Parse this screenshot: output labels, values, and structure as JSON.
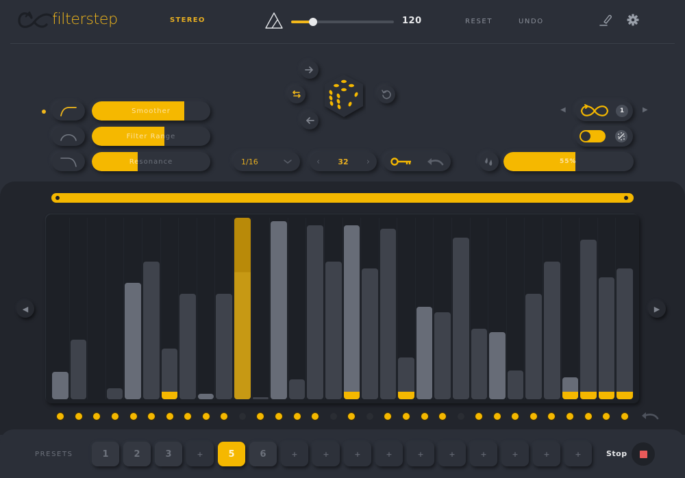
{
  "header": {
    "app_name": "filterstep",
    "mode_label": "STEREO",
    "tempo": {
      "value": "120",
      "slider_percent": 21
    },
    "reset_label": "RESET",
    "undo_label": "UNDO",
    "icons": {
      "logo": "infinity-loop-logo",
      "metronome": "metronome-icon",
      "edit": "pencil-icon",
      "settings": "gear-icon"
    }
  },
  "filter_panel": {
    "active_index": 0,
    "rows": [
      {
        "curve_icon": "lowpass-curve-icon",
        "label": "Smoother",
        "percent": 78
      },
      {
        "curve_icon": "bandpass-curve-icon",
        "label": "Filter Range",
        "percent": 61
      },
      {
        "curve_icon": "highpass-curve-icon",
        "label": "Resonance",
        "percent": 39
      }
    ]
  },
  "randomizer": {
    "icons": {
      "shift-right": "arrow-right-icon",
      "swap": "swap-arrows-icon",
      "shift-left": "arrow-left-icon",
      "dice": "dice-icon",
      "reset": "rotate-ccw-icon"
    }
  },
  "controls": {
    "division": {
      "value": "1/16",
      "icon": "chevron-down-icon"
    },
    "steps": {
      "value": "32",
      "prev": "‹",
      "next": "›"
    },
    "key_icon": "key-icon",
    "undo_icon": "undo-arrow-icon"
  },
  "right_panel": {
    "loop": {
      "prev": "◀",
      "next": "▶",
      "icon": "infinity-loop-icon",
      "count": "1"
    },
    "toggle": {
      "on": true,
      "icon": "random-dice-icon"
    },
    "mix": {
      "icon": "droplets-icon",
      "value": "55%",
      "percent": 55
    }
  },
  "sequencer": {
    "range": {
      "start": 0,
      "end": 100
    },
    "nav_prev": "◀",
    "nav_next": "▶",
    "steps": [
      {
        "h": 15,
        "tone": "light",
        "tip": false,
        "enabled": true
      },
      {
        "h": 33,
        "tone": "dark",
        "tip": false,
        "enabled": true
      },
      {
        "h": 0,
        "tone": "dark",
        "tip": false,
        "enabled": true
      },
      {
        "h": 6,
        "tone": "dark",
        "tip": false,
        "enabled": true
      },
      {
        "h": 64,
        "tone": "light",
        "tip": false,
        "enabled": true
      },
      {
        "h": 76,
        "tone": "dark",
        "tip": false,
        "enabled": true
      },
      {
        "h": 28,
        "tone": "dark",
        "tip": true,
        "enabled": true
      },
      {
        "h": 58,
        "tone": "dark",
        "tip": false,
        "enabled": true
      },
      {
        "h": 3,
        "tone": "light",
        "tip": false,
        "enabled": true
      },
      {
        "h": 58,
        "tone": "dark",
        "tip": false,
        "enabled": true
      },
      {
        "h": 100,
        "tone": "gold",
        "tip": false,
        "enabled": false
      },
      {
        "h": 1,
        "tone": "dark",
        "tip": false,
        "enabled": true
      },
      {
        "h": 98,
        "tone": "light",
        "tip": false,
        "enabled": true
      },
      {
        "h": 11,
        "tone": "dark",
        "tip": false,
        "enabled": true
      },
      {
        "h": 96,
        "tone": "dark",
        "tip": false,
        "enabled": true
      },
      {
        "h": 76,
        "tone": "dark",
        "tip": false,
        "enabled": false
      },
      {
        "h": 96,
        "tone": "light",
        "tip": true,
        "enabled": true
      },
      {
        "h": 72,
        "tone": "dark",
        "tip": false,
        "enabled": false
      },
      {
        "h": 94,
        "tone": "dark",
        "tip": false,
        "enabled": true
      },
      {
        "h": 23,
        "tone": "dark",
        "tip": true,
        "enabled": true
      },
      {
        "h": 51,
        "tone": "light",
        "tip": false,
        "enabled": true
      },
      {
        "h": 48,
        "tone": "dark",
        "tip": false,
        "enabled": true
      },
      {
        "h": 89,
        "tone": "dark",
        "tip": false,
        "enabled": false
      },
      {
        "h": 39,
        "tone": "dark",
        "tip": false,
        "enabled": true
      },
      {
        "h": 37,
        "tone": "light",
        "tip": false,
        "enabled": true
      },
      {
        "h": 16,
        "tone": "dark",
        "tip": false,
        "enabled": true
      },
      {
        "h": 58,
        "tone": "dark",
        "tip": false,
        "enabled": true
      },
      {
        "h": 76,
        "tone": "dark",
        "tip": false,
        "enabled": true
      },
      {
        "h": 12,
        "tone": "light",
        "tip": true,
        "enabled": true
      },
      {
        "h": 88,
        "tone": "dark",
        "tip": true,
        "enabled": true
      },
      {
        "h": 67,
        "tone": "dark",
        "tip": true,
        "enabled": true
      },
      {
        "h": 72,
        "tone": "dark",
        "tip": true,
        "enabled": true
      }
    ],
    "undo_icon": "undo-arrow-icon"
  },
  "presets": {
    "label": "PRESETS",
    "items": [
      {
        "label": "1",
        "state": "filled"
      },
      {
        "label": "2",
        "state": "filled"
      },
      {
        "label": "3",
        "state": "filled"
      },
      {
        "label": "+",
        "state": "empty"
      },
      {
        "label": "5",
        "state": "active"
      },
      {
        "label": "6",
        "state": "filled"
      },
      {
        "label": "+",
        "state": "empty"
      },
      {
        "label": "+",
        "state": "empty"
      },
      {
        "label": "+",
        "state": "empty"
      },
      {
        "label": "+",
        "state": "empty"
      },
      {
        "label": "+",
        "state": "empty"
      },
      {
        "label": "+",
        "state": "empty"
      },
      {
        "label": "+",
        "state": "empty"
      },
      {
        "label": "+",
        "state": "empty"
      },
      {
        "label": "+",
        "state": "empty"
      },
      {
        "label": "+",
        "state": "empty"
      }
    ]
  },
  "transport": {
    "label": "Stop",
    "icon": "stop-square-icon"
  },
  "colors": {
    "accent": "#f5b800",
    "background": "#2b2f38",
    "panel": "#22252c",
    "bar_light": "#676c77",
    "bar_dark": "#3f434c",
    "stop": "#ea5a5a"
  }
}
